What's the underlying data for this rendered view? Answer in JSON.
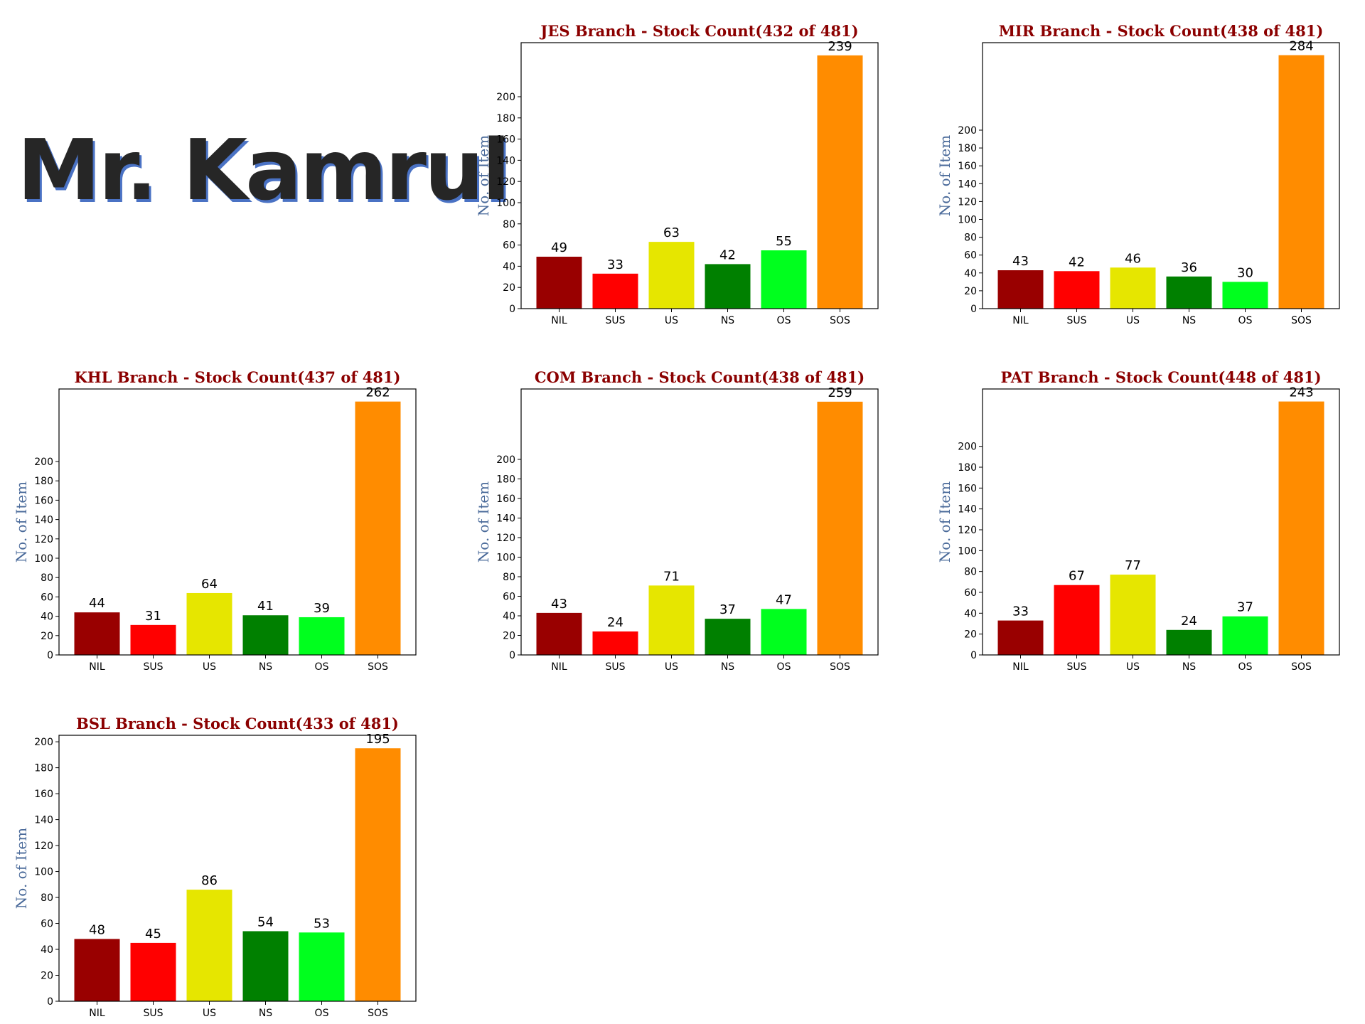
{
  "banner": {
    "text": "Mr. Kamrul"
  },
  "colors": {
    "NIL": "#990000",
    "SUS": "#ff0000",
    "US": "#e6e600",
    "NS": "#008000",
    "OS": "#00ff1e",
    "SOS": "#ff8c00",
    "title": "#8b0000",
    "ylabel": "#4a6a9a"
  },
  "chart_data": [
    {
      "type": "bar",
      "title": "JES Branch - Stock Count(432 of 481)",
      "ylabel": "No. of Item",
      "categories": [
        "NIL",
        "SUS",
        "US",
        "NS",
        "OS",
        "SOS"
      ],
      "values": [
        49,
        33,
        63,
        42,
        55,
        239
      ],
      "yticks": [
        0,
        20,
        40,
        60,
        80,
        100,
        120,
        140,
        160,
        180,
        200
      ],
      "ylim": [
        0,
        251
      ]
    },
    {
      "type": "bar",
      "title": "MIR Branch - Stock Count(438 of 481)",
      "ylabel": "No. of Item",
      "categories": [
        "NIL",
        "SUS",
        "US",
        "NS",
        "OS",
        "SOS"
      ],
      "values": [
        43,
        42,
        46,
        36,
        30,
        284
      ],
      "yticks": [
        0,
        20,
        40,
        60,
        80,
        100,
        120,
        140,
        160,
        180,
        200
      ],
      "ylim": [
        0,
        298
      ]
    },
    {
      "type": "bar",
      "title": "KHL Branch - Stock Count(437 of 481)",
      "ylabel": "No. of Item",
      "categories": [
        "NIL",
        "SUS",
        "US",
        "NS",
        "OS",
        "SOS"
      ],
      "values": [
        44,
        31,
        64,
        41,
        39,
        262
      ],
      "yticks": [
        0,
        20,
        40,
        60,
        80,
        100,
        120,
        140,
        160,
        180,
        200
      ],
      "ylim": [
        0,
        275
      ]
    },
    {
      "type": "bar",
      "title": "COM Branch - Stock Count(438 of 481)",
      "ylabel": "No. of Item",
      "categories": [
        "NIL",
        "SUS",
        "US",
        "NS",
        "OS",
        "SOS"
      ],
      "values": [
        43,
        24,
        71,
        37,
        47,
        259
      ],
      "yticks": [
        0,
        20,
        40,
        60,
        80,
        100,
        120,
        140,
        160,
        180,
        200
      ],
      "ylim": [
        0,
        272
      ]
    },
    {
      "type": "bar",
      "title": "PAT Branch - Stock Count(448 of 481)",
      "ylabel": "No. of Item",
      "categories": [
        "NIL",
        "SUS",
        "US",
        "NS",
        "OS",
        "SOS"
      ],
      "values": [
        33,
        67,
        77,
        24,
        37,
        243
      ],
      "yticks": [
        0,
        20,
        40,
        60,
        80,
        100,
        120,
        140,
        160,
        180,
        200
      ],
      "ylim": [
        0,
        255
      ]
    },
    {
      "type": "bar",
      "title": "BSL Branch - Stock Count(433 of 481)",
      "ylabel": "No. of Item",
      "categories": [
        "NIL",
        "SUS",
        "US",
        "NS",
        "OS",
        "SOS"
      ],
      "values": [
        48,
        45,
        86,
        54,
        53,
        195
      ],
      "yticks": [
        0,
        20,
        40,
        60,
        80,
        100,
        120,
        140,
        160,
        180,
        200
      ],
      "ylim": [
        0,
        205
      ]
    }
  ]
}
